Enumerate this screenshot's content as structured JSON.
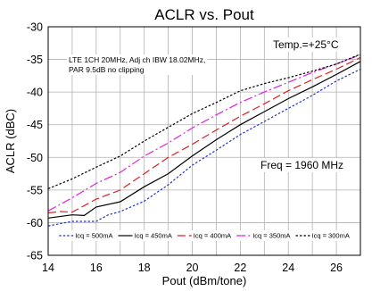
{
  "chart_data": {
    "type": "line",
    "title": "ACLR vs. Pout",
    "xlabel": "Pout (dBm/tone)",
    "ylabel": "ACLR (dBC)",
    "xlim": [
      14,
      27
    ],
    "ylim": [
      -65,
      -30
    ],
    "xticks": [
      14,
      16,
      18,
      20,
      22,
      24,
      26
    ],
    "yticks": [
      -65,
      -60,
      -55,
      -50,
      -45,
      -40,
      -35,
      -30
    ],
    "grid": true,
    "legend_position": "bottom",
    "annotations": {
      "condition": [
        "LTE 1CH 20MHz, Adj ch IBW 18.02MHz,",
        "PAR 9.5dB no clipping"
      ],
      "temperature": "Temp.=+25°C",
      "frequency": "Freq = 1960 MHz"
    },
    "series": [
      {
        "name": "Icq = 500mA",
        "color": "#1f35c9",
        "dash": "2.5,2",
        "x": [
          14,
          15,
          16,
          16.5,
          17,
          18,
          19,
          20,
          21,
          22,
          23,
          24,
          25,
          26,
          27
        ],
        "y": [
          -60.5,
          -59.8,
          -59.8,
          -58.8,
          -58.3,
          -56.7,
          -54.2,
          -51.2,
          -48.9,
          -46.5,
          -44.5,
          -42.5,
          -40.5,
          -38.3,
          -36.5
        ]
      },
      {
        "name": "Icq = 450mA",
        "color": "#000000",
        "dash": "",
        "x": [
          14,
          15,
          15.5,
          16,
          17,
          18,
          19,
          20,
          21,
          22,
          23,
          24,
          25,
          26,
          27
        ],
        "y": [
          -59.3,
          -58.8,
          -58.9,
          -57.6,
          -56.8,
          -54.5,
          -52.5,
          -49.8,
          -47.3,
          -45.0,
          -43.0,
          -41.0,
          -39.2,
          -37.3,
          -35.3
        ]
      },
      {
        "name": "Icq = 400mA",
        "color": "#e02020",
        "dash": "9,4",
        "x": [
          14,
          14.5,
          15,
          16,
          17,
          18,
          19,
          20,
          21,
          22,
          23,
          24,
          25,
          26,
          27
        ],
        "y": [
          -58.5,
          -58.3,
          -58.4,
          -56.4,
          -55.0,
          -52.5,
          -50.0,
          -48.0,
          -45.8,
          -43.7,
          -41.8,
          -39.8,
          -38.1,
          -36.5,
          -34.7
        ]
      },
      {
        "name": "Icq = 350mA",
        "color": "#e020e0",
        "dash": "10,3,2,3",
        "x": [
          14,
          15,
          16,
          17,
          18,
          19,
          20,
          21,
          22,
          23,
          24,
          25,
          26,
          27
        ],
        "y": [
          -58.2,
          -56.2,
          -54.0,
          -52.3,
          -49.8,
          -47.8,
          -45.5,
          -43.5,
          -41.6,
          -40.0,
          -38.5,
          -37.0,
          -35.7,
          -34.3
        ]
      },
      {
        "name": "Icq = 300mA",
        "color": "#000000",
        "dash": "2.5,2",
        "x": [
          14,
          15,
          16,
          17,
          18,
          19,
          20,
          21,
          22,
          23,
          24,
          25,
          26,
          27
        ],
        "y": [
          -54.8,
          -53.3,
          -51.5,
          -49.8,
          -47.5,
          -45.4,
          -43.3,
          -41.6,
          -39.8,
          -38.7,
          -37.8,
          -36.8,
          -35.7,
          -34.2
        ]
      }
    ]
  }
}
